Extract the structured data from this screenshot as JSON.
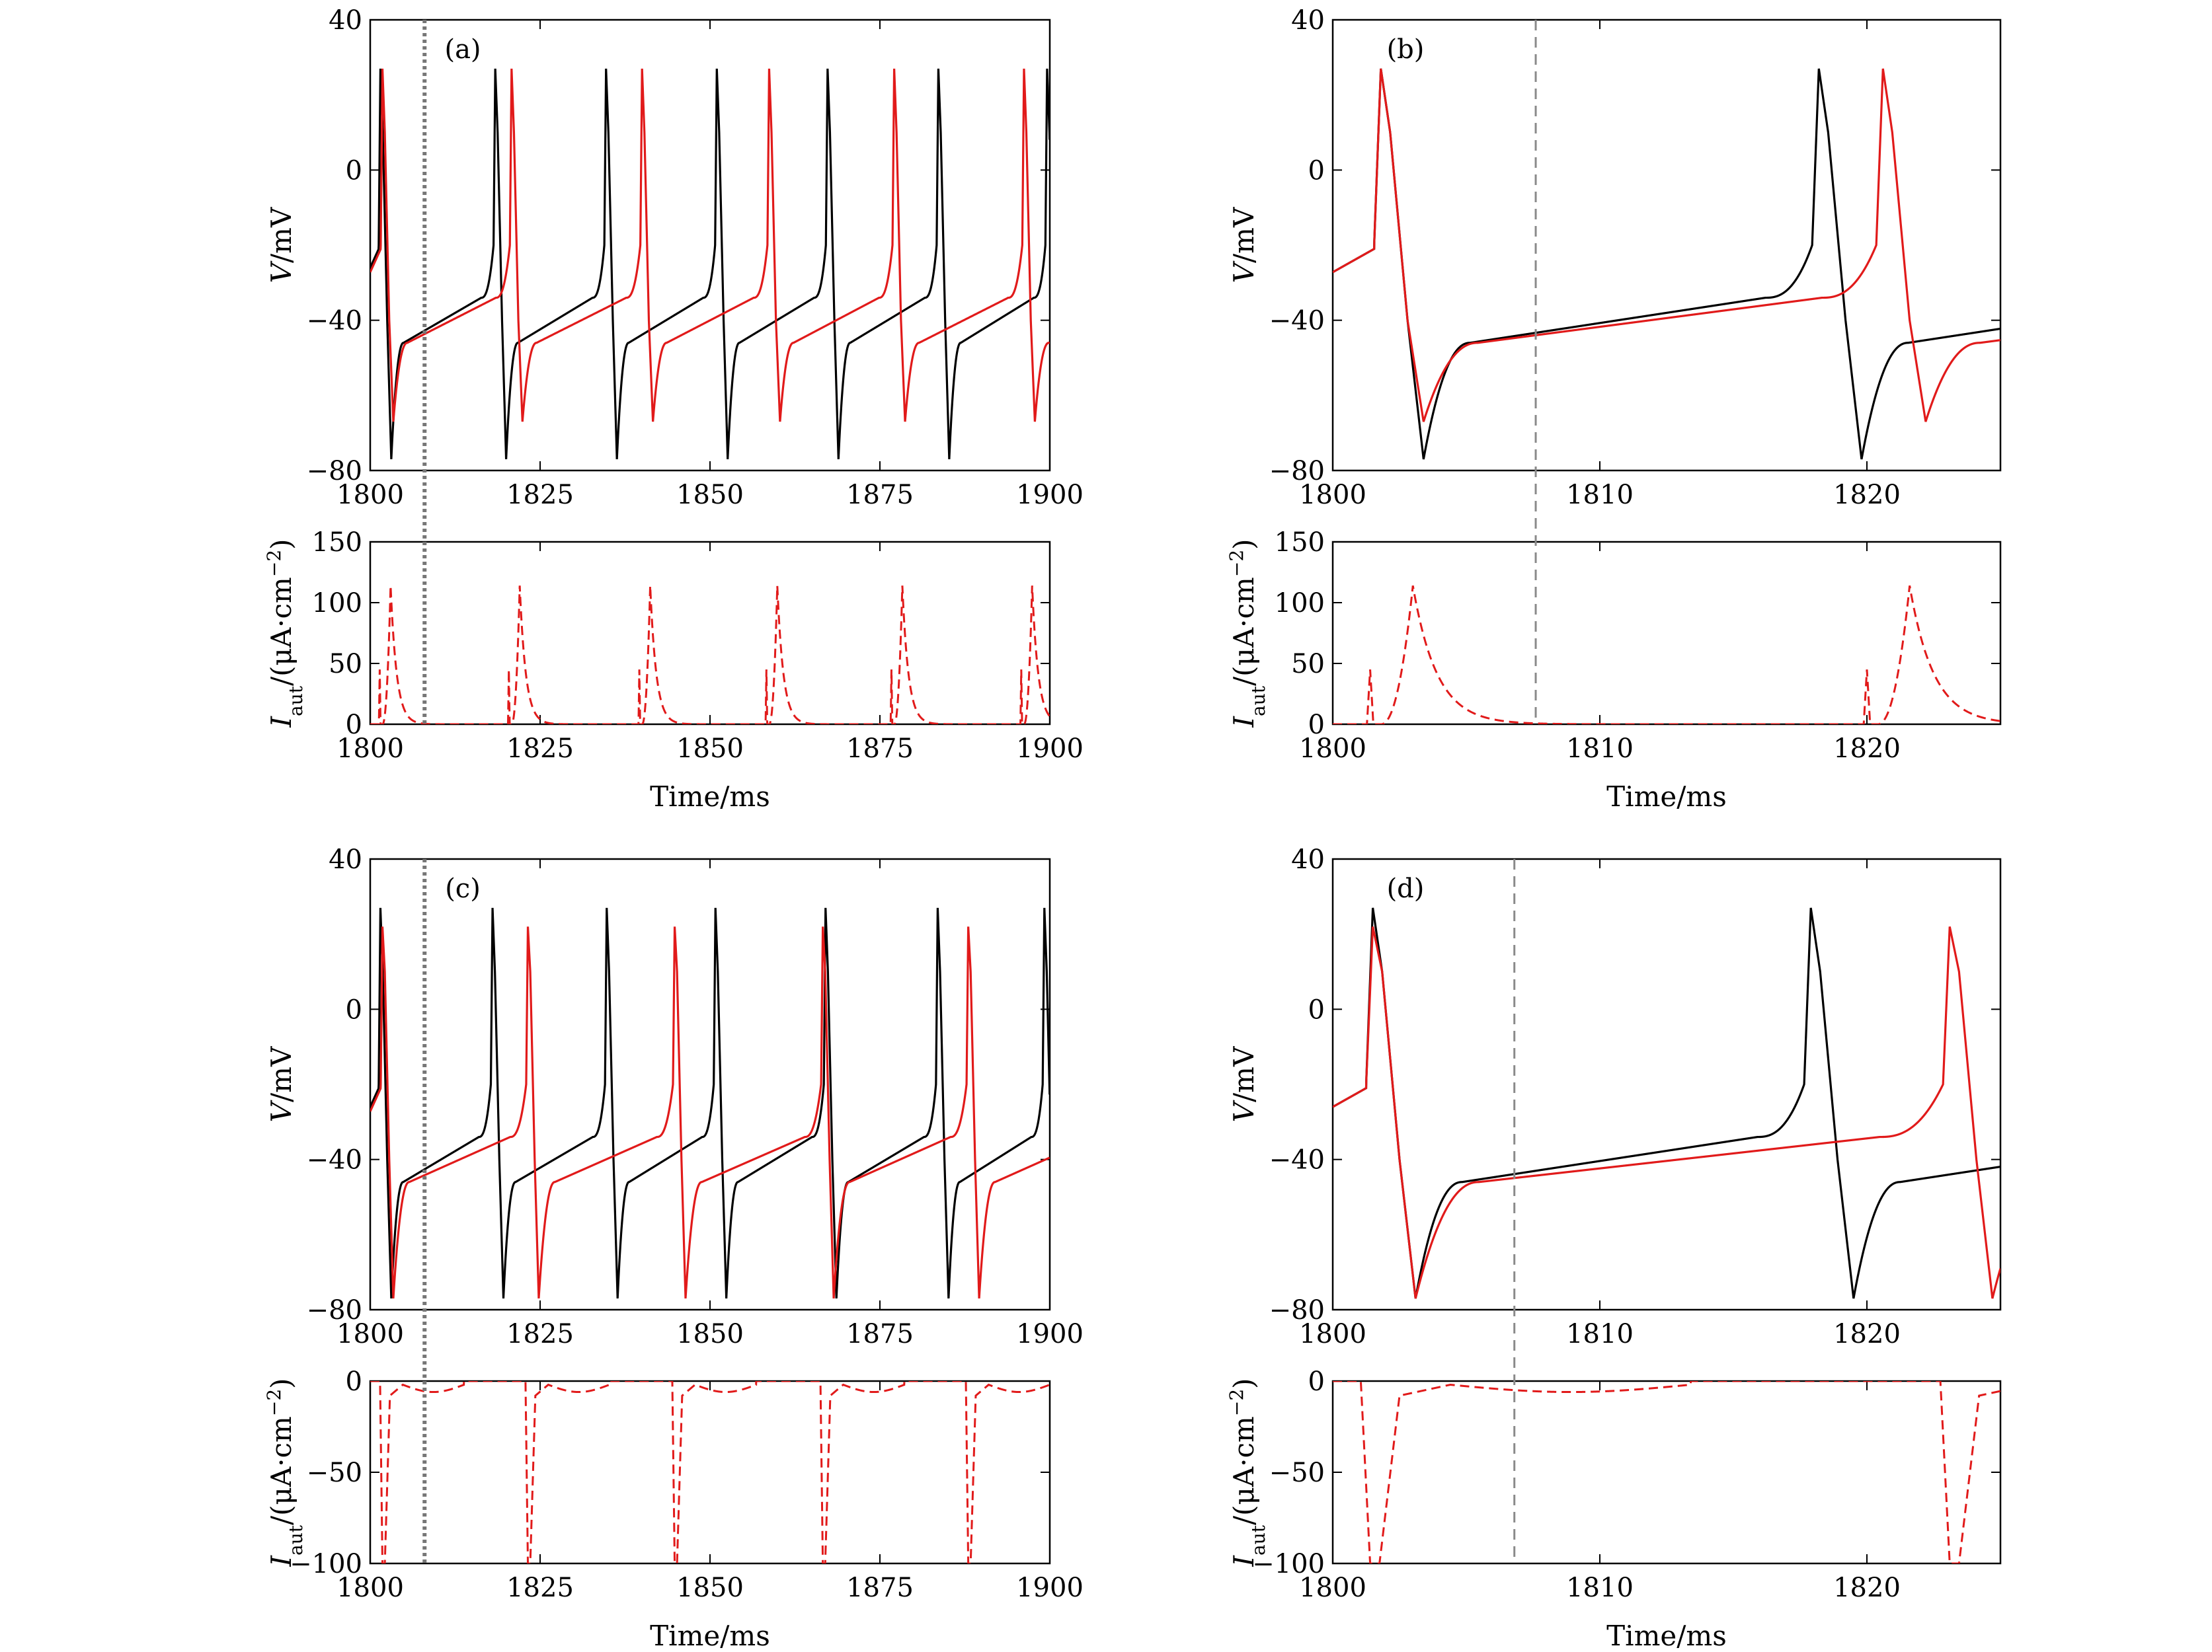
{
  "colors": {
    "black_series": "#000000",
    "red_series": "#e11a1a",
    "marker_line_a": "#777777",
    "marker_line_b": "#8a8a8a"
  },
  "chart_data": [
    {
      "panel": "(a)",
      "type": "line",
      "xlim": [
        1800,
        1900
      ],
      "xticks": [
        1800,
        1825,
        1850,
        1875,
        1900
      ],
      "top": {
        "ylabel_italic": "V",
        "ylabel_rest": "/mV",
        "ylim": [
          -80,
          40
        ],
        "yticks": [
          -80,
          -40,
          0,
          40
        ],
        "series": [
          {
            "color": "black",
            "spikes": [
              1801.5,
              1818.4,
              1834.7,
              1851.0,
              1867.3,
              1883.6,
              1899.6
            ],
            "peak": 27,
            "trough": -77
          },
          {
            "color": "red",
            "spikes": [
              1801.8,
              1820.8,
              1840.0,
              1858.7,
              1877.1,
              1896.2
            ],
            "peak": 27,
            "trough": -67
          }
        ]
      },
      "bottom": {
        "ylabel_italic": "I",
        "ylabel_sub": "aut",
        "ylabel_rest": "/(μA·cm",
        "ylabel_sup": "−2",
        "ylabel_close": ")",
        "ylim": [
          0,
          150
        ],
        "yticks": [
          0,
          50,
          100,
          150
        ],
        "series": [
          {
            "color": "red",
            "style": "dashed",
            "peaks": [
              1803.0,
              1822.0,
              1841.2,
              1859.9,
              1878.3,
              1897.4
            ],
            "peak": 114,
            "precursor": 45
          }
        ]
      },
      "marker_x": 1808,
      "marker_style": "dotted",
      "xlabel": "Time/ms"
    },
    {
      "panel": "(b)",
      "type": "line",
      "xlim": [
        1800,
        1825
      ],
      "xticks": [
        1800,
        1810,
        1820
      ],
      "top": {
        "ylabel_italic": "V",
        "ylabel_rest": "/mV",
        "ylim": [
          -80,
          40
        ],
        "yticks": [
          -80,
          -40,
          0,
          40
        ],
        "series": [
          {
            "color": "black",
            "spikes": [
              1801.8,
              1818.2
            ],
            "peak": 27,
            "trough": -77
          },
          {
            "color": "red",
            "spikes": [
              1801.8,
              1820.6
            ],
            "peak": 27,
            "trough": -67
          }
        ]
      },
      "bottom": {
        "ylabel_italic": "I",
        "ylabel_sub": "aut",
        "ylabel_rest": "/(μA·cm",
        "ylabel_sup": "−2",
        "ylabel_close": ")",
        "ylim": [
          0,
          150
        ],
        "yticks": [
          0,
          50,
          100,
          150
        ],
        "series": [
          {
            "color": "red",
            "style": "dashed",
            "peaks": [
              1803.0,
              1821.6
            ],
            "peak": 114,
            "precursor": 45
          }
        ]
      },
      "marker_x": 1807.6,
      "marker_style": "dashed",
      "xlabel": "Time/ms"
    },
    {
      "panel": "(c)",
      "type": "line",
      "xlim": [
        1800,
        1900
      ],
      "xticks": [
        1800,
        1825,
        1850,
        1875,
        1900
      ],
      "top": {
        "ylabel_italic": "V",
        "ylabel_rest": "/mV",
        "ylim": [
          -80,
          40
        ],
        "yticks": [
          -80,
          -40,
          0,
          40
        ],
        "series": [
          {
            "color": "black",
            "spikes": [
              1801.5,
              1818.0,
              1834.8,
              1850.8,
              1867.0,
              1883.5,
              1899.2
            ],
            "peak": 27,
            "trough": -77
          },
          {
            "color": "red",
            "spikes": [
              1801.8,
              1823.2,
              1844.8,
              1866.6,
              1888.0
            ],
            "peak": 22,
            "trough": -77
          }
        ]
      },
      "bottom": {
        "ylabel_italic": "I",
        "ylabel_sub": "aut",
        "ylabel_rest": "/(μA·cm",
        "ylabel_sup": "−2",
        "ylabel_close": ")",
        "ylim": [
          -100,
          0
        ],
        "yticks": [
          -100,
          -50,
          0
        ],
        "series": [
          {
            "color": "red",
            "style": "dashed",
            "troughs": [
              1801.8,
              1823.2,
              1844.8,
              1866.6,
              1888.0
            ],
            "trough": -100,
            "tail": -8
          }
        ]
      },
      "marker_x": 1808,
      "marker_style": "dotted",
      "xlabel": "Time/ms"
    },
    {
      "panel": "(d)",
      "type": "line",
      "xlim": [
        1800,
        1825
      ],
      "xticks": [
        1800,
        1810,
        1820
      ],
      "top": {
        "ylabel_italic": "V",
        "ylabel_rest": "/mV",
        "ylim": [
          -80,
          40
        ],
        "yticks": [
          -80,
          -40,
          0,
          40
        ],
        "series": [
          {
            "color": "black",
            "spikes": [
              1801.5,
              1817.9
            ],
            "peak": 27,
            "trough": -77
          },
          {
            "color": "red",
            "spikes": [
              1801.5,
              1823.1
            ],
            "peak": 22,
            "trough": -77
          }
        ]
      },
      "bottom": {
        "ylabel_italic": "I",
        "ylabel_sub": "aut",
        "ylabel_rest": "/(μA·cm",
        "ylabel_sup": "−2",
        "ylabel_close": ")",
        "ylim": [
          -100,
          0
        ],
        "yticks": [
          -100,
          -50,
          0
        ],
        "series": [
          {
            "color": "red",
            "style": "dashed",
            "troughs": [
              1801.4,
              1823.1
            ],
            "trough": -100,
            "tail": -8
          }
        ]
      },
      "marker_x": 1806.8,
      "marker_style": "dashed",
      "xlabel": "Time/ms"
    }
  ]
}
